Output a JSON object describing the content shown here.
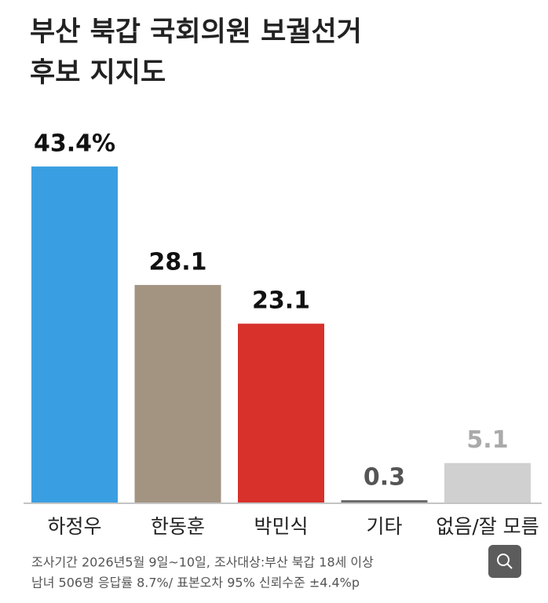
{
  "chart_data": {
    "type": "bar",
    "title": [
      "부산 북갑 국회의원 보궐선거",
      "후보 지지도"
    ],
    "categories": [
      "하정우",
      "한동훈",
      "박민식",
      "기타",
      "없음/잘 모름"
    ],
    "values": [
      43.4,
      28.1,
      23.1,
      0.3,
      5.1
    ],
    "value_labels": [
      "43.4%",
      "28.1",
      "23.1",
      "0.3",
      "5.1"
    ],
    "colors": [
      "#3a9fe2",
      "#a39482",
      "#d8302b",
      "#6b6b6b",
      "#d0d0d0"
    ],
    "notes": [
      "조사기간 2026년5월 9일~10일, 조사대상:부산 북갑 18세 이상",
      "남녀 506명   응답률 8.7%/ 표본오차 95% 신뢰수준  ±4.4%p"
    ]
  }
}
